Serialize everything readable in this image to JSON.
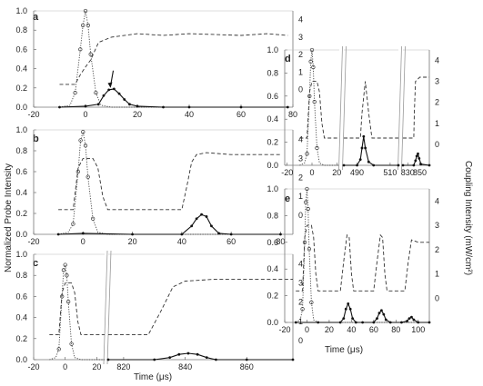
{
  "figure": {
    "ylabel_left": "Normalized Probe Intensity",
    "ylabel_right": "Coupling Intensity (mW/cm²)",
    "xlabel": "Time (μs)"
  },
  "chart_data": [
    {
      "panel": "a",
      "type": "line",
      "xlim": [
        -20,
        80
      ],
      "ylim": [
        0,
        1.0
      ],
      "ylim_right": [
        -1,
        4.5
      ],
      "x_ticks": [
        -20,
        0,
        20,
        40,
        60,
        80
      ],
      "y_ticks": [
        0.0,
        0.2,
        0.4,
        0.6,
        0.8,
        1.0
      ],
      "y_right_ticks": [
        0,
        1,
        2,
        3,
        4
      ],
      "annotation": "arrow at ~10 μs",
      "series": [
        {
          "role": "coupling",
          "style": "dashed",
          "x": [
            -10,
            -4,
            -2,
            0,
            2,
            5,
            10,
            20,
            30,
            40,
            50,
            60,
            70,
            78
          ],
          "y": [
            0.3,
            0.3,
            0.85,
            1.3,
            1.7,
            2.7,
            3.0,
            3.2,
            3.1,
            3.2,
            3.15,
            3.1,
            3.2,
            3.1
          ]
        },
        {
          "role": "probe",
          "style": "dotted-circles",
          "x": [
            -10,
            -6,
            -4,
            -2,
            -1,
            0,
            1,
            2,
            4,
            6,
            10,
            20,
            40,
            60,
            78
          ],
          "y": [
            0.0,
            0.02,
            0.15,
            0.6,
            0.85,
            1.0,
            0.85,
            0.55,
            0.15,
            0.02,
            0.0,
            0.0,
            0.0,
            0.0,
            0.0
          ]
        },
        {
          "role": "retrieved",
          "style": "solid-dots",
          "x": [
            -10,
            0,
            5,
            7,
            9,
            11,
            13,
            15,
            17,
            20,
            30,
            40,
            60,
            78
          ],
          "y": [
            0.0,
            0.01,
            0.03,
            0.12,
            0.18,
            0.19,
            0.14,
            0.08,
            0.03,
            0.01,
            0.0,
            0.0,
            0.0,
            0.0
          ]
        }
      ]
    },
    {
      "panel": "b",
      "type": "line",
      "xlim": [
        -20,
        85
      ],
      "ylim": [
        0,
        1.0
      ],
      "ylim_right": [
        -1,
        4.5
      ],
      "x_ticks": [
        -20,
        0,
        20,
        40,
        60,
        80
      ],
      "y_ticks": [
        0.0,
        0.2,
        0.4,
        0.6,
        0.8,
        1.0
      ],
      "y_right_ticks": [
        0,
        1,
        2,
        3,
        4
      ],
      "series": [
        {
          "role": "coupling",
          "style": "dashed",
          "x": [
            -10,
            -4,
            -2,
            0,
            4,
            6,
            8,
            10,
            14,
            40,
            42,
            44,
            46,
            50,
            60,
            70,
            80
          ],
          "y": [
            0.3,
            0.3,
            2.5,
            3.0,
            3.0,
            2.5,
            1.0,
            0.3,
            0.3,
            0.3,
            1.5,
            2.8,
            3.2,
            3.3,
            3.2,
            3.2,
            3.2
          ]
        },
        {
          "role": "probe",
          "style": "dotted-circles",
          "x": [
            -10,
            -6,
            -4,
            -2,
            -1,
            0,
            1,
            2,
            4,
            6,
            10,
            20,
            40,
            60,
            80
          ],
          "y": [
            0.0,
            0.02,
            0.1,
            0.6,
            0.9,
            0.98,
            0.85,
            0.55,
            0.15,
            0.02,
            0.0,
            0.0,
            0.0,
            0.0,
            0.0
          ]
        },
        {
          "role": "retrieved",
          "style": "solid-dots",
          "x": [
            -10,
            0,
            20,
            40,
            44,
            46,
            48,
            50,
            52,
            55,
            60,
            80
          ],
          "y": [
            0.0,
            0.01,
            0.0,
            0.0,
            0.08,
            0.15,
            0.19,
            0.17,
            0.08,
            0.01,
            0.0,
            0.0
          ]
        }
      ]
    },
    {
      "panel": "c",
      "type": "line",
      "broken_x_axis": true,
      "segments": [
        {
          "xlim": [
            -20,
            25
          ],
          "x_ticks": [
            -20,
            0,
            20
          ]
        },
        {
          "xlim": [
            815,
            875
          ],
          "x_ticks": [
            820,
            840,
            860
          ]
        }
      ],
      "ylim": [
        0,
        1.0
      ],
      "ylim_right": [
        -1,
        4.5
      ],
      "y_ticks": [
        0.0,
        0.2,
        0.4,
        0.6,
        0.8,
        1.0
      ],
      "y_right_ticks": [
        0,
        1,
        2,
        3,
        4
      ],
      "series": [
        {
          "role": "coupling",
          "style": "dashed",
          "x": [
            -10,
            -4,
            -2,
            0,
            4,
            6,
            8,
            10,
            14,
            25,
            815,
            828,
            832,
            836,
            840,
            850,
            860,
            875
          ],
          "y": [
            0.3,
            0.3,
            2.5,
            3.0,
            3.0,
            2.5,
            1.0,
            0.3,
            0.3,
            0.3,
            0.3,
            0.3,
            1.5,
            2.8,
            3.1,
            3.2,
            3.2,
            3.2
          ]
        },
        {
          "role": "probe",
          "style": "dotted-circles",
          "x": [
            -10,
            -6,
            -4,
            -2,
            -1,
            0,
            1,
            2,
            4,
            6,
            10,
            25
          ],
          "y": [
            0.0,
            0.02,
            0.1,
            0.6,
            0.85,
            0.9,
            0.8,
            0.55,
            0.15,
            0.02,
            0.0,
            0.0
          ]
        },
        {
          "role": "retrieved",
          "style": "solid-dots",
          "x": [
            815,
            830,
            835,
            838,
            841,
            844,
            847,
            850,
            860,
            875
          ],
          "y": [
            0.0,
            0.0,
            0.02,
            0.05,
            0.06,
            0.05,
            0.02,
            0.0,
            0.0,
            0.0
          ]
        }
      ]
    },
    {
      "panel": "d",
      "type": "line",
      "broken_x_axis": true,
      "segments": [
        {
          "xlim": [
            -22,
            22
          ],
          "x_ticks": [
            -20,
            0,
            20
          ]
        },
        {
          "xlim": [
            482,
            515
          ],
          "x_ticks": [
            490,
            510
          ]
        },
        {
          "xlim": [
            822,
            866
          ],
          "x_ticks": [
            830,
            850
          ]
        }
      ],
      "ylim": [
        0,
        1.0
      ],
      "ylim_right": [
        -1,
        4.5
      ],
      "y_ticks": [
        0.0,
        0.2,
        0.4,
        0.6,
        0.8,
        1.0
      ],
      "y_right_ticks": [
        0,
        1,
        2,
        3,
        4
      ],
      "series": [
        {
          "role": "coupling",
          "style": "dashed",
          "x": [
            -10,
            -4,
            -2,
            0,
            4,
            6,
            8,
            10,
            22,
            482,
            492,
            493,
            495,
            497,
            499,
            500,
            515,
            822,
            840,
            841,
            843,
            850,
            866
          ],
          "y": [
            0.3,
            0.3,
            2.5,
            3.0,
            3.0,
            2.5,
            1.0,
            0.3,
            0.3,
            0.3,
            0.3,
            1.5,
            3.0,
            1.5,
            0.3,
            0.3,
            0.3,
            0.3,
            0.3,
            1.5,
            3.0,
            3.2,
            3.2
          ]
        },
        {
          "role": "probe",
          "style": "dotted-circles",
          "x": [
            -10,
            -6,
            -4,
            -2,
            -1,
            0,
            1,
            2,
            4,
            6,
            10,
            22
          ],
          "y": [
            0.0,
            0.02,
            0.1,
            0.6,
            0.9,
            1.0,
            0.85,
            0.55,
            0.15,
            0.02,
            0.0,
            0.0
          ]
        },
        {
          "role": "retrieved",
          "style": "solid-dots",
          "x": [
            482,
            490,
            492,
            493,
            494,
            495,
            497,
            500,
            515,
            822,
            840,
            843,
            845,
            847,
            849,
            852,
            866
          ],
          "y": [
            0.0,
            0.0,
            0.05,
            0.15,
            0.25,
            0.15,
            0.03,
            0.0,
            0.0,
            0.0,
            0.0,
            0.04,
            0.08,
            0.1,
            0.06,
            0.01,
            0.0
          ]
        }
      ]
    },
    {
      "panel": "e",
      "type": "line",
      "xlim": [
        -20,
        110
      ],
      "ylim": [
        0,
        1.0
      ],
      "ylim_right": [
        -1,
        4.5
      ],
      "x_ticks": [
        -20,
        0,
        20,
        40,
        60,
        80,
        100
      ],
      "y_ticks": [
        0.0,
        0.2,
        0.4,
        0.6,
        0.8,
        1.0
      ],
      "y_right_ticks": [
        0,
        1,
        2,
        3,
        4
      ],
      "series": [
        {
          "role": "coupling",
          "style": "dashed",
          "x": [
            -10,
            -4,
            -2,
            0,
            4,
            6,
            8,
            10,
            30,
            33,
            36,
            38,
            40,
            42,
            60,
            63,
            66,
            68,
            70,
            72,
            88,
            91,
            94,
            100,
            110
          ],
          "y": [
            0.3,
            0.3,
            2.5,
            3.0,
            3.0,
            2.5,
            1.0,
            0.3,
            0.3,
            1.5,
            2.6,
            2.5,
            1.0,
            0.3,
            0.3,
            1.5,
            2.6,
            2.5,
            1.0,
            0.3,
            0.3,
            1.5,
            2.4,
            2.3,
            2.3
          ]
        },
        {
          "role": "probe",
          "style": "dotted-circles",
          "x": [
            -10,
            -6,
            -4,
            -2,
            -1,
            0,
            1,
            2,
            4,
            6,
            10,
            20,
            60,
            110
          ],
          "y": [
            0.0,
            0.02,
            0.1,
            0.6,
            0.9,
            1.0,
            0.85,
            0.55,
            0.15,
            0.02,
            0.0,
            0.0,
            0.0,
            0.0
          ]
        },
        {
          "role": "retrieved",
          "style": "solid-dots",
          "x": [
            -10,
            10,
            30,
            33,
            35,
            37,
            39,
            41,
            44,
            50,
            60,
            63,
            65,
            67,
            69,
            71,
            75,
            85,
            90,
            92,
            94,
            96,
            100,
            110
          ],
          "y": [
            0.0,
            0.0,
            0.0,
            0.03,
            0.1,
            0.14,
            0.1,
            0.03,
            0.0,
            0.0,
            0.0,
            0.03,
            0.07,
            0.09,
            0.06,
            0.02,
            0.0,
            0.0,
            0.01,
            0.03,
            0.04,
            0.02,
            0.0,
            0.0
          ]
        }
      ]
    }
  ]
}
